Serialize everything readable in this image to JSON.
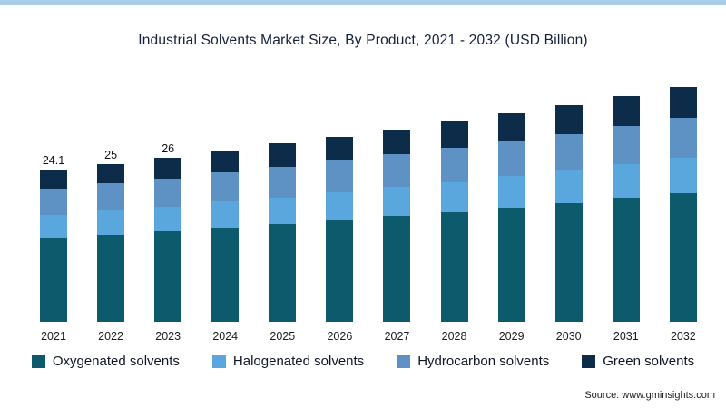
{
  "source": "Source: www.gminsights.com",
  "chart_data": {
    "type": "bar",
    "stacked": true,
    "title": "Industrial Solvents Market Size, By Product, 2021 - 2032 (USD Billion)",
    "xlabel": "",
    "ylabel": "USD Billion",
    "grid": false,
    "legend_position": "bottom",
    "categories": [
      "2021",
      "2022",
      "2023",
      "2024",
      "2025",
      "2026",
      "2027",
      "2028",
      "2029",
      "2030",
      "2031",
      "2032"
    ],
    "value_labels": [
      "24.1",
      "25",
      "26",
      "",
      "",
      "",
      "",
      "",
      "",
      "",
      "",
      ""
    ],
    "totals": [
      24.1,
      25,
      26,
      27,
      28.2,
      29.2,
      30.4,
      31.6,
      32.9,
      34.2,
      35.6,
      37.1
    ],
    "series": [
      {
        "name": "Oxygenated solvents",
        "color": "#0e5a6d",
        "values": [
          13.3,
          13.8,
          14.3,
          14.9,
          15.5,
          16.1,
          16.7,
          17.4,
          18.1,
          18.8,
          19.6,
          20.4
        ]
      },
      {
        "name": "Halogenated solvents",
        "color": "#5aa7de",
        "values": [
          3.6,
          3.8,
          3.9,
          4.1,
          4.2,
          4.4,
          4.6,
          4.7,
          4.9,
          5.1,
          5.3,
          5.6
        ]
      },
      {
        "name": "Hydrocarbon solvents",
        "color": "#5e92c4",
        "values": [
          4.1,
          4.3,
          4.4,
          4.6,
          4.8,
          5.0,
          5.2,
          5.4,
          5.6,
          5.8,
          6.1,
          6.3
        ]
      },
      {
        "name": "Green solvents",
        "color": "#0c2c49",
        "values": [
          3.1,
          3.1,
          3.4,
          3.4,
          3.7,
          3.7,
          3.9,
          4.1,
          4.3,
          4.5,
          4.6,
          4.8
        ]
      }
    ]
  }
}
